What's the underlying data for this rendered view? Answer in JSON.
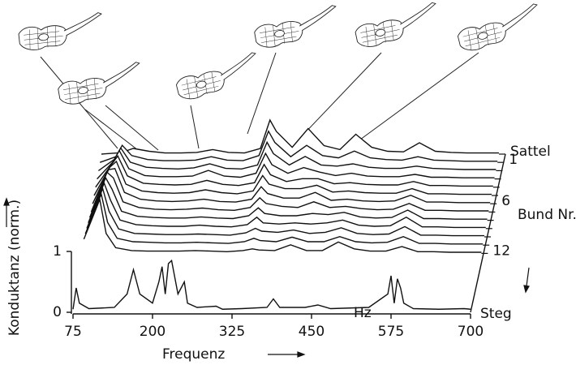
{
  "chart_data": {
    "type": "waterfall",
    "xlabel": "Frequenz",
    "ylabel": "Konduktanz (norm.)",
    "x_unit": "Hz",
    "right_axis_label": "Bund Nr.",
    "xlim": [
      75,
      700
    ],
    "ylim": [
      0,
      1
    ],
    "xticks": [
      75,
      200,
      325,
      450,
      575,
      700
    ],
    "yticks": [
      0,
      1
    ],
    "color": "#111111",
    "x": [
      75,
      100,
      110,
      125,
      150,
      175,
      200,
      225,
      250,
      275,
      300,
      325,
      340,
      350,
      375,
      400,
      425,
      450,
      475,
      500,
      525,
      550,
      575,
      600,
      625,
      650,
      675,
      700
    ],
    "series": [
      {
        "name": "Sattel",
        "values": [
          0,
          0.02,
          0.04,
          0.1,
          0.05,
          0.02,
          0.02,
          0.03,
          0.08,
          0.03,
          0.02,
          0.1,
          0.6,
          0.4,
          0.12,
          0.45,
          0.15,
          0.08,
          0.35,
          0.12,
          0.05,
          0.04,
          0.2,
          0.05,
          0.03,
          0.02,
          0.02,
          0.02
        ]
      },
      {
        "name": "1",
        "values": [
          0,
          0.1,
          0.3,
          0.12,
          0.05,
          0.03,
          0.03,
          0.04,
          0.1,
          0.04,
          0.03,
          0.12,
          0.55,
          0.35,
          0.1,
          0.3,
          0.12,
          0.08,
          0.2,
          0.08,
          0.05,
          0.04,
          0.1,
          0.04,
          0.03,
          0.02,
          0.02,
          0.02
        ]
      },
      {
        "values": [
          0,
          0.2,
          0.4,
          0.15,
          0.06,
          0.04,
          0.03,
          0.05,
          0.12,
          0.04,
          0.03,
          0.1,
          0.5,
          0.3,
          0.1,
          0.25,
          0.1,
          0.08,
          0.12,
          0.06,
          0.04,
          0.04,
          0.08,
          0.04,
          0.03,
          0.02,
          0.02,
          0.02
        ]
      },
      {
        "values": [
          0,
          0.3,
          0.5,
          0.18,
          0.06,
          0.04,
          0.04,
          0.05,
          0.15,
          0.05,
          0.03,
          0.1,
          0.45,
          0.25,
          0.1,
          0.2,
          0.12,
          0.06,
          0.1,
          0.05,
          0.04,
          0.04,
          0.08,
          0.03,
          0.03,
          0.02,
          0.02,
          0.02
        ]
      },
      {
        "values": [
          0,
          0.4,
          0.55,
          0.2,
          0.07,
          0.05,
          0.04,
          0.05,
          0.12,
          0.05,
          0.03,
          0.08,
          0.4,
          0.22,
          0.1,
          0.15,
          0.15,
          0.06,
          0.08,
          0.05,
          0.04,
          0.04,
          0.1,
          0.03,
          0.03,
          0.02,
          0.02,
          0.02
        ]
      },
      {
        "values": [
          0,
          0.5,
          0.6,
          0.2,
          0.08,
          0.05,
          0.04,
          0.05,
          0.1,
          0.05,
          0.03,
          0.08,
          0.35,
          0.2,
          0.12,
          0.12,
          0.18,
          0.06,
          0.08,
          0.05,
          0.04,
          0.04,
          0.12,
          0.03,
          0.03,
          0.02,
          0.02,
          0.02
        ]
      },
      {
        "name": "6",
        "values": [
          0,
          0.6,
          0.62,
          0.2,
          0.08,
          0.05,
          0.04,
          0.05,
          0.08,
          0.04,
          0.03,
          0.08,
          0.3,
          0.18,
          0.1,
          0.1,
          0.2,
          0.06,
          0.08,
          0.05,
          0.04,
          0.05,
          0.15,
          0.03,
          0.03,
          0.02,
          0.02,
          0.02
        ]
      },
      {
        "values": [
          0,
          0.7,
          0.6,
          0.18,
          0.08,
          0.05,
          0.04,
          0.05,
          0.07,
          0.04,
          0.03,
          0.08,
          0.25,
          0.15,
          0.1,
          0.08,
          0.18,
          0.08,
          0.1,
          0.06,
          0.04,
          0.05,
          0.15,
          0.03,
          0.03,
          0.02,
          0.02,
          0.02
        ]
      },
      {
        "values": [
          0.05,
          0.75,
          0.55,
          0.16,
          0.07,
          0.05,
          0.04,
          0.04,
          0.06,
          0.04,
          0.03,
          0.08,
          0.22,
          0.12,
          0.08,
          0.08,
          0.12,
          0.1,
          0.14,
          0.06,
          0.04,
          0.05,
          0.18,
          0.03,
          0.03,
          0.02,
          0.02,
          0.02
        ]
      },
      {
        "values": [
          0.1,
          0.8,
          0.5,
          0.15,
          0.07,
          0.05,
          0.04,
          0.04,
          0.06,
          0.04,
          0.03,
          0.07,
          0.2,
          0.1,
          0.08,
          0.1,
          0.08,
          0.1,
          0.15,
          0.06,
          0.04,
          0.05,
          0.2,
          0.03,
          0.03,
          0.02,
          0.02,
          0.02
        ]
      },
      {
        "values": [
          0.15,
          0.85,
          0.45,
          0.14,
          0.06,
          0.05,
          0.04,
          0.04,
          0.05,
          0.04,
          0.03,
          0.07,
          0.15,
          0.1,
          0.08,
          0.12,
          0.06,
          0.08,
          0.16,
          0.06,
          0.04,
          0.05,
          0.18,
          0.03,
          0.03,
          0.02,
          0.02,
          0.02
        ]
      },
      {
        "values": [
          0.2,
          0.9,
          0.4,
          0.12,
          0.06,
          0.05,
          0.04,
          0.04,
          0.05,
          0.04,
          0.03,
          0.06,
          0.12,
          0.08,
          0.06,
          0.14,
          0.06,
          0.06,
          0.15,
          0.06,
          0.04,
          0.05,
          0.15,
          0.03,
          0.03,
          0.02,
          0.02,
          0.02
        ]
      },
      {
        "name": "12",
        "values": [
          0.25,
          0.95,
          0.35,
          0.1,
          0.05,
          0.04,
          0.04,
          0.04,
          0.05,
          0.04,
          0.03,
          0.05,
          0.08,
          0.06,
          0.05,
          0.15,
          0.05,
          0.05,
          0.2,
          0.08,
          0.04,
          0.04,
          0.12,
          0.03,
          0.03,
          0.02,
          0.02,
          0.02
        ]
      }
    ],
    "front_series": {
      "name": "Steg",
      "x": [
        75,
        80,
        85,
        100,
        140,
        160,
        170,
        180,
        200,
        210,
        215,
        220,
        225,
        230,
        240,
        250,
        255,
        270,
        300,
        310,
        340,
        380,
        390,
        400,
        440,
        460,
        480,
        540,
        570,
        575,
        580,
        585,
        590,
        595,
        610,
        650,
        690,
        700
      ],
      "values": [
        0.05,
        0.4,
        0.15,
        0.06,
        0.08,
        0.3,
        0.7,
        0.3,
        0.15,
        0.5,
        0.75,
        0.3,
        0.8,
        0.85,
        0.3,
        0.5,
        0.15,
        0.08,
        0.1,
        0.05,
        0.06,
        0.08,
        0.22,
        0.08,
        0.08,
        0.12,
        0.06,
        0.08,
        0.3,
        0.6,
        0.15,
        0.55,
        0.4,
        0.15,
        0.06,
        0.05,
        0.06,
        0.05
      ]
    }
  }
}
